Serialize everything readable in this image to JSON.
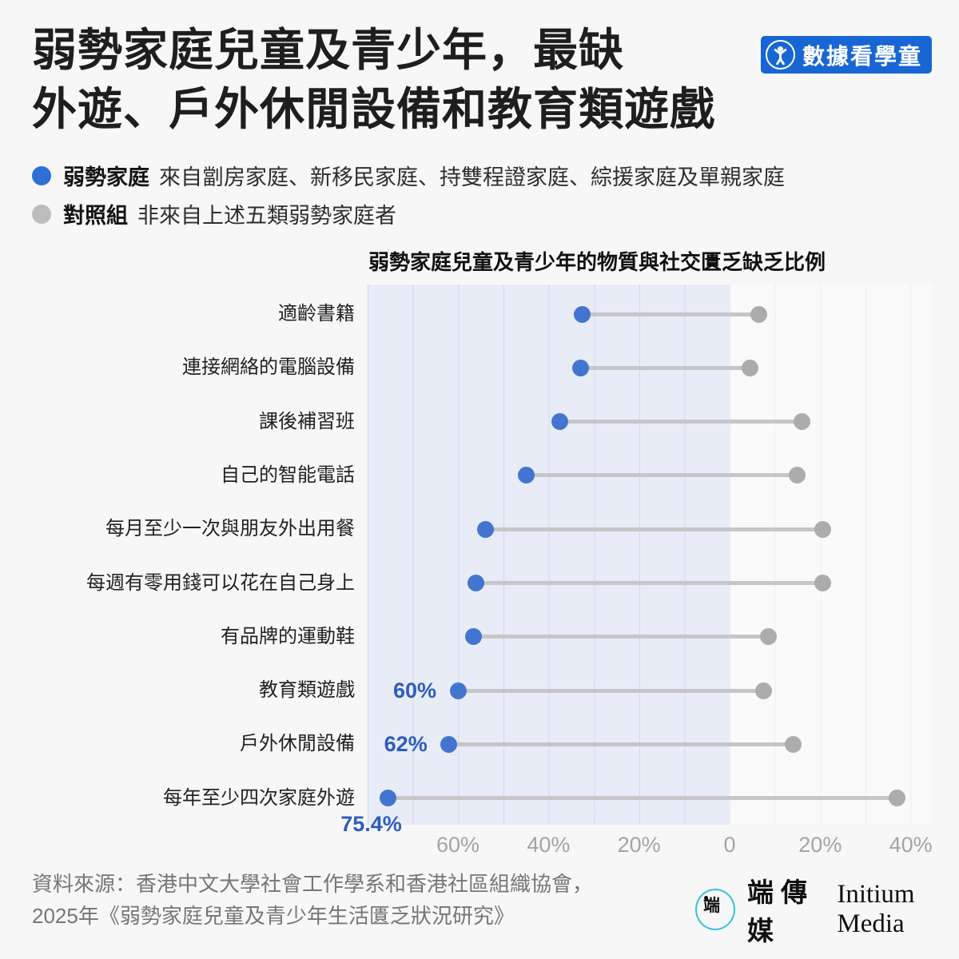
{
  "header": {
    "title_line1": "弱勢家庭兒童及青少年，最缺",
    "title_line2": "外遊、戶外休閒設備和教育類遊戲",
    "badge_label": "數據看學童"
  },
  "legend": {
    "disadvantaged": {
      "term": "弱勢家庭",
      "description": "來自劏房家庭、新移民家庭、持雙程證家庭、綜援家庭及單親家庭",
      "color": "#2f6fd6"
    },
    "control": {
      "term": "對照組",
      "description": "非來自上述五類弱勢家庭者",
      "color": "#bdbdbf"
    }
  },
  "chart_data": {
    "type": "dumbbell",
    "title": "弱勢家庭兒童及青少年的物質與社交匱乏缺乏比例",
    "unit": "%",
    "orientation": "horizontal-diverging",
    "series": [
      {
        "name": "弱勢家庭",
        "side": "left",
        "color": "#4374d0"
      },
      {
        "name": "對照組",
        "side": "right",
        "color": "#acacae"
      }
    ],
    "categories": [
      "適齡書籍",
      "連接網絡的電腦設備",
      "課後補習班",
      "自己的智能電話",
      "每月至少一次與朋友外出用餐",
      "每週有零用錢可以花在自己身上",
      "有品牌的運動鞋",
      "教育類遊戲",
      "戶外休閒設備",
      "每年至少四次家庭外遊"
    ],
    "rows": [
      {
        "category": "適齡書籍",
        "disadvantaged": 32.5,
        "control": 6.5,
        "value_label": null
      },
      {
        "category": "連接網絡的電腦設備",
        "disadvantaged": 33,
        "control": 4.5,
        "value_label": null
      },
      {
        "category": "課後補習班",
        "disadvantaged": 37.5,
        "control": 16,
        "value_label": null
      },
      {
        "category": "自己的智能電話",
        "disadvantaged": 45,
        "control": 15,
        "value_label": null
      },
      {
        "category": "每月至少一次與朋友外出用餐",
        "disadvantaged": 54,
        "control": 20.5,
        "value_label": null
      },
      {
        "category": "每週有零用錢可以花在自己身上",
        "disadvantaged": 56,
        "control": 20.5,
        "value_label": null
      },
      {
        "category": "有品牌的運動鞋",
        "disadvantaged": 56.5,
        "control": 8.5,
        "value_label": null
      },
      {
        "category": "教育類遊戲",
        "disadvantaged": 60,
        "control": 7.5,
        "value_label": "60%"
      },
      {
        "category": "戶外休閒設備",
        "disadvantaged": 62,
        "control": 14,
        "value_label": "62%"
      },
      {
        "category": "每年至少四次家庭外遊",
        "disadvantaged": 75.4,
        "control": 37,
        "value_label": "75.4%"
      }
    ],
    "axis": {
      "ticks": [
        {
          "label": "60%",
          "value": -60
        },
        {
          "label": "40%",
          "value": -40
        },
        {
          "label": "20%",
          "value": -20
        },
        {
          "label": "0",
          "value": 0
        },
        {
          "label": "20%",
          "value": 20
        },
        {
          "label": "40%",
          "value": 40
        }
      ],
      "left_range_pct": 80,
      "right_range_pct": 45,
      "grid": true,
      "shaded_left_color": "#e8ecf6"
    }
  },
  "footer": {
    "source_line1": "資料來源：香港中文大學社會工作學系和香港社區組織協會，",
    "source_line2": "2025年《弱勢家庭兒童及青少年生活匱乏狀況研究》",
    "logo_mark": "端",
    "publisher_zh": "端傳媒",
    "publisher_en": "Initium Media"
  }
}
